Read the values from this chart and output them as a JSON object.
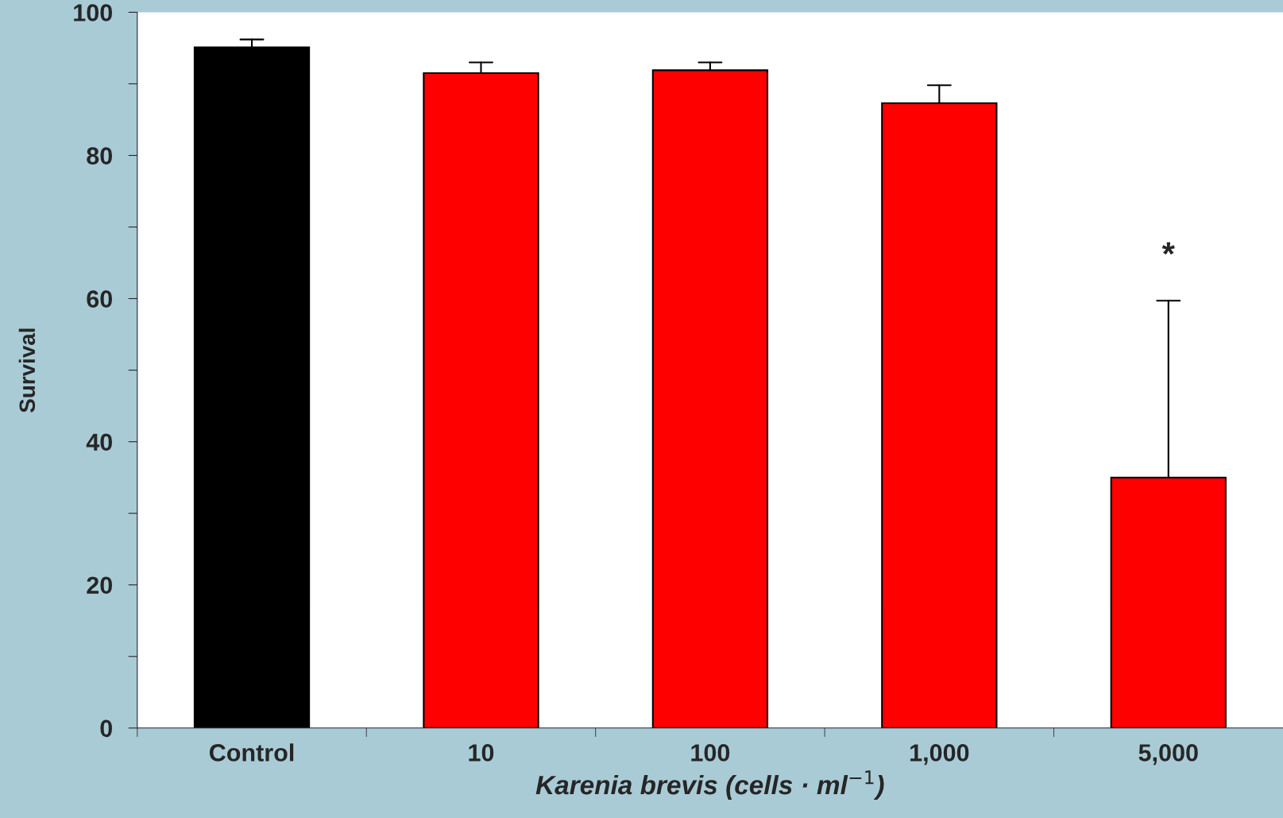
{
  "chart_data": {
    "type": "bar",
    "xlabel": "Karenia brevis (cells · ml$^{−1}$)",
    "ylabel": "Survival",
    "categories": [
      "Control",
      "10",
      "100",
      "1,000",
      "5,000"
    ],
    "values": [
      95.1,
      91.5,
      91.9,
      87.3,
      35.0
    ],
    "colors": [
      "#000000",
      "#ff0000",
      "#ff0000",
      "#ff0000",
      "#ff0000"
    ],
    "errors": [
      [
        95.1,
        96.2
      ],
      [
        91.5,
        93.0
      ],
      [
        91.9,
        93.0
      ],
      [
        87.3,
        89.8
      ],
      [
        35.0,
        59.7
      ]
    ],
    "ylim": [
      0,
      100
    ],
    "yticks": [
      0,
      {
        "value": 10,
        "label": null
      },
      20,
      {
        "value": 30,
        "label": null
      },
      40,
      {
        "value": 50,
        "label": null
      },
      60,
      {
        "value": 70,
        "label": null
      },
      80,
      {
        "value": 90,
        "label": null
      },
      100
    ],
    "annotations": [
      "*"
    ],
    "grid": false,
    "legend": false
  }
}
